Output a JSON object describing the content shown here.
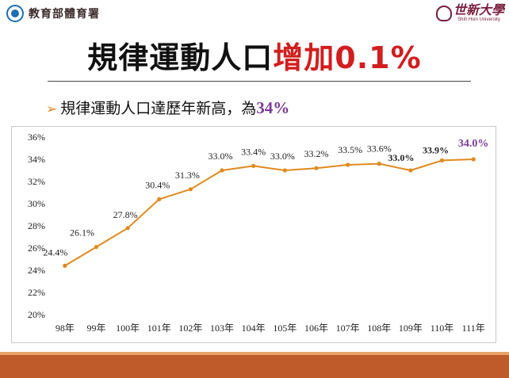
{
  "header": {
    "ministry_name": "教育部體育署",
    "university_name": "世新大學",
    "university_en": "Shih Hsin University"
  },
  "slide": {
    "title_main": "規律運動人口",
    "title_highlight": "增加0.1%",
    "subtitle_text": "規律運動人口達歷年新高，為",
    "subtitle_value": "34%",
    "colors": {
      "highlight": "#d21e1e",
      "subtitle_value": "#7a3b9a",
      "line": "#e08a1e",
      "bottom_bar": "#bf5a2a"
    }
  },
  "chart_data": {
    "type": "line",
    "categories": [
      "98年",
      "99年",
      "100年",
      "101年",
      "102年",
      "103年",
      "104年",
      "105年",
      "106年",
      "107年",
      "108年",
      "109年",
      "110年",
      "111年"
    ],
    "values": [
      24.4,
      26.1,
      27.8,
      30.4,
      31.3,
      33.0,
      33.4,
      33.0,
      33.2,
      33.5,
      33.6,
      33.0,
      33.9,
      34.0
    ],
    "data_labels": [
      "24.4%",
      "26.1%",
      "27.8%",
      "30.4%",
      "31.3%",
      "33.0%",
      "33.4%",
      "33.0%",
      "33.2%",
      "33.5%",
      "33.6%",
      "33.0%",
      "33.9%",
      "34.0%"
    ],
    "y_ticks": [
      "20%",
      "22%",
      "24%",
      "26%",
      "28%",
      "30%",
      "32%",
      "34%",
      "36%"
    ],
    "ylim": [
      20,
      36
    ],
    "grid": false,
    "line_color": "#e08a1e",
    "bold_labels": [
      11,
      12
    ],
    "highlight_label_index": 13,
    "highlight_label_color": "#7a3b9a"
  }
}
